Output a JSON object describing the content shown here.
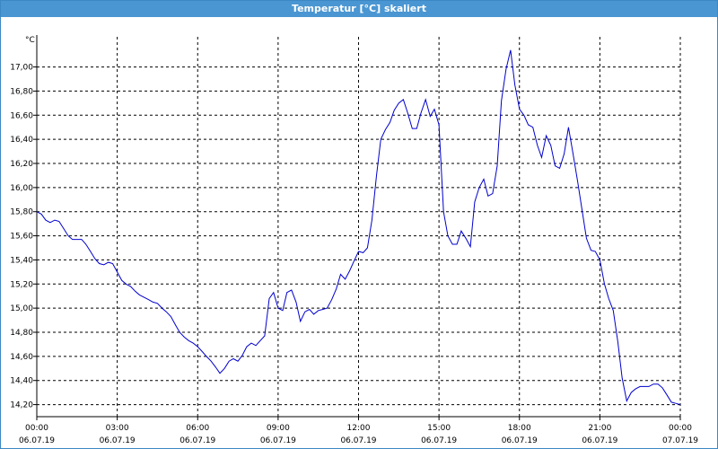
{
  "window": {
    "title": "Temperatur [°C] skaliert"
  },
  "chart_data": {
    "type": "line",
    "title": "Temperatur [°C] skaliert",
    "ylabel": "°C",
    "xlabel": "",
    "grid": true,
    "ylim": [
      14.1,
      17.25
    ],
    "xlim": [
      0,
      24
    ],
    "y_ticks": [
      "14,20",
      "14,40",
      "14,60",
      "14,80",
      "15,00",
      "15,20",
      "15,40",
      "15,60",
      "15,80",
      "16,00",
      "16,20",
      "16,40",
      "16,60",
      "16,80",
      "17,00"
    ],
    "x_ticks": [
      {
        "time": "00:00",
        "date": "06.07.19"
      },
      {
        "time": "03:00",
        "date": "06.07.19"
      },
      {
        "time": "06:00",
        "date": "06.07.19"
      },
      {
        "time": "09:00",
        "date": "06.07.19"
      },
      {
        "time": "12:00",
        "date": "06.07.19"
      },
      {
        "time": "15:00",
        "date": "06.07.19"
      },
      {
        "time": "18:00",
        "date": "06.07.19"
      },
      {
        "time": "21:00",
        "date": "06.07.19"
      },
      {
        "time": "00:00",
        "date": "07.07.19"
      }
    ],
    "series": [
      {
        "color": "#0000cc",
        "points": [
          [
            0.0,
            15.8
          ],
          [
            0.17,
            15.78
          ],
          [
            0.33,
            15.73
          ],
          [
            0.5,
            15.71
          ],
          [
            0.67,
            15.73
          ],
          [
            0.83,
            15.72
          ],
          [
            1.0,
            15.66
          ],
          [
            1.17,
            15.6
          ],
          [
            1.33,
            15.57
          ],
          [
            1.5,
            15.57
          ],
          [
            1.67,
            15.57
          ],
          [
            1.83,
            15.53
          ],
          [
            2.0,
            15.47
          ],
          [
            2.17,
            15.41
          ],
          [
            2.33,
            15.37
          ],
          [
            2.5,
            15.36
          ],
          [
            2.67,
            15.38
          ],
          [
            2.83,
            15.37
          ],
          [
            3.0,
            15.3
          ],
          [
            3.17,
            15.23
          ],
          [
            3.33,
            15.2
          ],
          [
            3.5,
            15.18
          ],
          [
            3.67,
            15.14
          ],
          [
            3.83,
            15.11
          ],
          [
            4.0,
            15.09
          ],
          [
            4.17,
            15.07
          ],
          [
            4.33,
            15.05
          ],
          [
            4.5,
            15.04
          ],
          [
            4.67,
            15.0
          ],
          [
            4.83,
            14.97
          ],
          [
            5.0,
            14.93
          ],
          [
            5.17,
            14.86
          ],
          [
            5.33,
            14.8
          ],
          [
            5.5,
            14.76
          ],
          [
            5.67,
            14.73
          ],
          [
            5.83,
            14.71
          ],
          [
            6.0,
            14.68
          ],
          [
            6.17,
            14.64
          ],
          [
            6.33,
            14.6
          ],
          [
            6.5,
            14.56
          ],
          [
            6.67,
            14.51
          ],
          [
            6.83,
            14.46
          ],
          [
            7.0,
            14.5
          ],
          [
            7.17,
            14.56
          ],
          [
            7.33,
            14.58
          ],
          [
            7.5,
            14.56
          ],
          [
            7.67,
            14.61
          ],
          [
            7.83,
            14.68
          ],
          [
            8.0,
            14.71
          ],
          [
            8.17,
            14.69
          ],
          [
            8.33,
            14.73
          ],
          [
            8.5,
            14.77
          ],
          [
            8.67,
            15.08
          ],
          [
            8.83,
            15.13
          ],
          [
            9.0,
            15.0
          ],
          [
            9.17,
            14.98
          ],
          [
            9.33,
            15.13
          ],
          [
            9.5,
            15.15
          ],
          [
            9.67,
            15.05
          ],
          [
            9.83,
            14.89
          ],
          [
            10.0,
            14.97
          ],
          [
            10.17,
            14.99
          ],
          [
            10.33,
            14.95
          ],
          [
            10.5,
            14.98
          ],
          [
            10.67,
            14.99
          ],
          [
            10.83,
            15.0
          ],
          [
            11.0,
            15.07
          ],
          [
            11.17,
            15.16
          ],
          [
            11.33,
            15.28
          ],
          [
            11.5,
            15.24
          ],
          [
            11.67,
            15.31
          ],
          [
            11.83,
            15.39
          ],
          [
            12.0,
            15.47
          ],
          [
            12.17,
            15.46
          ],
          [
            12.33,
            15.5
          ],
          [
            12.5,
            15.73
          ],
          [
            12.67,
            16.1
          ],
          [
            12.83,
            16.4
          ],
          [
            13.0,
            16.48
          ],
          [
            13.17,
            16.54
          ],
          [
            13.33,
            16.64
          ],
          [
            13.5,
            16.7
          ],
          [
            13.67,
            16.73
          ],
          [
            13.83,
            16.62
          ],
          [
            14.0,
            16.49
          ],
          [
            14.17,
            16.49
          ],
          [
            14.33,
            16.62
          ],
          [
            14.5,
            16.73
          ],
          [
            14.67,
            16.59
          ],
          [
            14.83,
            16.65
          ],
          [
            15.0,
            16.52
          ],
          [
            15.17,
            15.8
          ],
          [
            15.33,
            15.6
          ],
          [
            15.5,
            15.53
          ],
          [
            15.67,
            15.53
          ],
          [
            15.83,
            15.64
          ],
          [
            16.0,
            15.58
          ],
          [
            16.17,
            15.51
          ],
          [
            16.33,
            15.88
          ],
          [
            16.5,
            16.0
          ],
          [
            16.67,
            16.07
          ],
          [
            16.83,
            15.93
          ],
          [
            17.0,
            15.95
          ],
          [
            17.17,
            16.18
          ],
          [
            17.33,
            16.72
          ],
          [
            17.5,
            16.98
          ],
          [
            17.67,
            17.14
          ],
          [
            17.83,
            16.85
          ],
          [
            18.0,
            16.65
          ],
          [
            18.17,
            16.6
          ],
          [
            18.33,
            16.52
          ],
          [
            18.5,
            16.5
          ],
          [
            18.67,
            16.35
          ],
          [
            18.83,
            16.25
          ],
          [
            19.0,
            16.43
          ],
          [
            19.17,
            16.35
          ],
          [
            19.33,
            16.18
          ],
          [
            19.5,
            16.16
          ],
          [
            19.67,
            16.28
          ],
          [
            19.83,
            16.5
          ],
          [
            20.0,
            16.28
          ],
          [
            20.17,
            16.05
          ],
          [
            20.33,
            15.82
          ],
          [
            20.5,
            15.58
          ],
          [
            20.67,
            15.48
          ],
          [
            20.83,
            15.47
          ],
          [
            21.0,
            15.4
          ],
          [
            21.17,
            15.2
          ],
          [
            21.33,
            15.08
          ],
          [
            21.5,
            14.98
          ],
          [
            21.67,
            14.72
          ],
          [
            21.83,
            14.42
          ],
          [
            22.0,
            14.23
          ],
          [
            22.17,
            14.3
          ],
          [
            22.33,
            14.33
          ],
          [
            22.5,
            14.35
          ],
          [
            22.67,
            14.35
          ],
          [
            22.83,
            14.35
          ],
          [
            23.0,
            14.37
          ],
          [
            23.17,
            14.37
          ],
          [
            23.33,
            14.34
          ],
          [
            23.5,
            14.28
          ],
          [
            23.67,
            14.22
          ],
          [
            23.83,
            14.21
          ],
          [
            24.0,
            14.2
          ]
        ]
      }
    ]
  }
}
